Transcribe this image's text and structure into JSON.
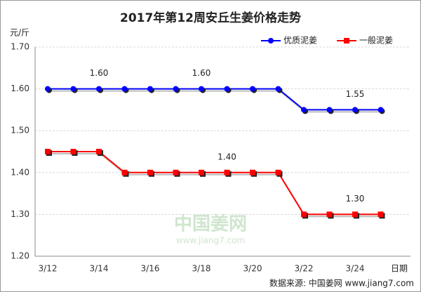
{
  "chart_data": {
    "type": "line",
    "title": "2017年第12周安丘生姜价格走势",
    "y_label": "元/斤",
    "x_label": "日期",
    "source": "数据来源: 中国姜网 www.jiang7.com",
    "watermark": [
      "中国姜网",
      "www.jiang7.com"
    ],
    "categories": [
      "3/12",
      null,
      "3/14",
      null,
      "3/16",
      null,
      "3/18",
      null,
      "3/20",
      null,
      "3/22",
      null,
      "3/24",
      null
    ],
    "series": [
      {
        "name": "优质泥姜",
        "color": "#0000ff",
        "marker": "circle",
        "values": [
          1.6,
          1.6,
          1.6,
          1.6,
          1.6,
          1.6,
          1.6,
          1.6,
          1.6,
          1.6,
          1.55,
          1.55,
          1.55,
          1.55
        ],
        "value_labels": [
          null,
          null,
          "1.60",
          null,
          null,
          null,
          "1.60",
          null,
          null,
          null,
          null,
          null,
          "1.55",
          null
        ]
      },
      {
        "name": "一般泥姜",
        "color": "#ff0000",
        "marker": "square",
        "values": [
          1.45,
          1.45,
          1.45,
          1.4,
          1.4,
          1.4,
          1.4,
          1.4,
          1.4,
          1.4,
          1.3,
          1.3,
          1.3,
          1.3
        ],
        "value_labels": [
          null,
          null,
          null,
          null,
          null,
          null,
          null,
          "1.40",
          null,
          null,
          null,
          null,
          "1.30",
          null
        ]
      }
    ],
    "ylim": [
      1.2,
      1.7
    ],
    "yticks": [
      {
        "value": 1.2,
        "label": "1.20"
      },
      {
        "value": 1.3,
        "label": "1.30"
      },
      {
        "value": 1.4,
        "label": "1.40"
      },
      {
        "value": 1.5,
        "label": "1.50"
      },
      {
        "value": 1.6,
        "label": "1.60"
      },
      {
        "value": 1.7,
        "label": "1.70"
      }
    ],
    "grid": true,
    "legend": "top-right"
  }
}
